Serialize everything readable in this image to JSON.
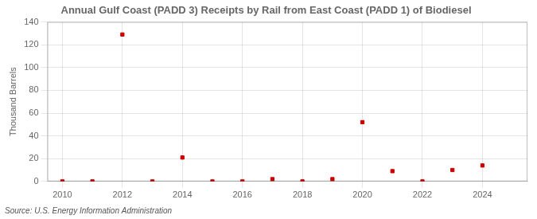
{
  "chart_data": {
    "type": "scatter",
    "title": "Annual Gulf Coast (PADD 3) Receipts by Rail from East Coast (PADD 1) of Biodiesel",
    "ylabel": "Thousand Barrels",
    "annotations": [
      "Source: U.S. Energy Information Administration"
    ],
    "x": [
      2010,
      2011,
      2012,
      2013,
      2014,
      2015,
      2016,
      2017,
      2018,
      2019,
      2020,
      2021,
      2022,
      2023,
      2024
    ],
    "values": [
      0,
      0,
      129,
      0,
      21,
      0,
      0,
      2,
      0,
      2,
      52,
      9,
      0,
      10,
      14
    ],
    "color": "#cc0000",
    "marker": "square",
    "xlim": [
      2009.5,
      2025.5
    ],
    "xticks": [
      2010,
      2012,
      2014,
      2016,
      2018,
      2020,
      2022,
      2024
    ],
    "ylim": [
      0,
      140
    ],
    "yticks": [
      0,
      20,
      40,
      60,
      80,
      100,
      120,
      140
    ],
    "grid": true
  }
}
